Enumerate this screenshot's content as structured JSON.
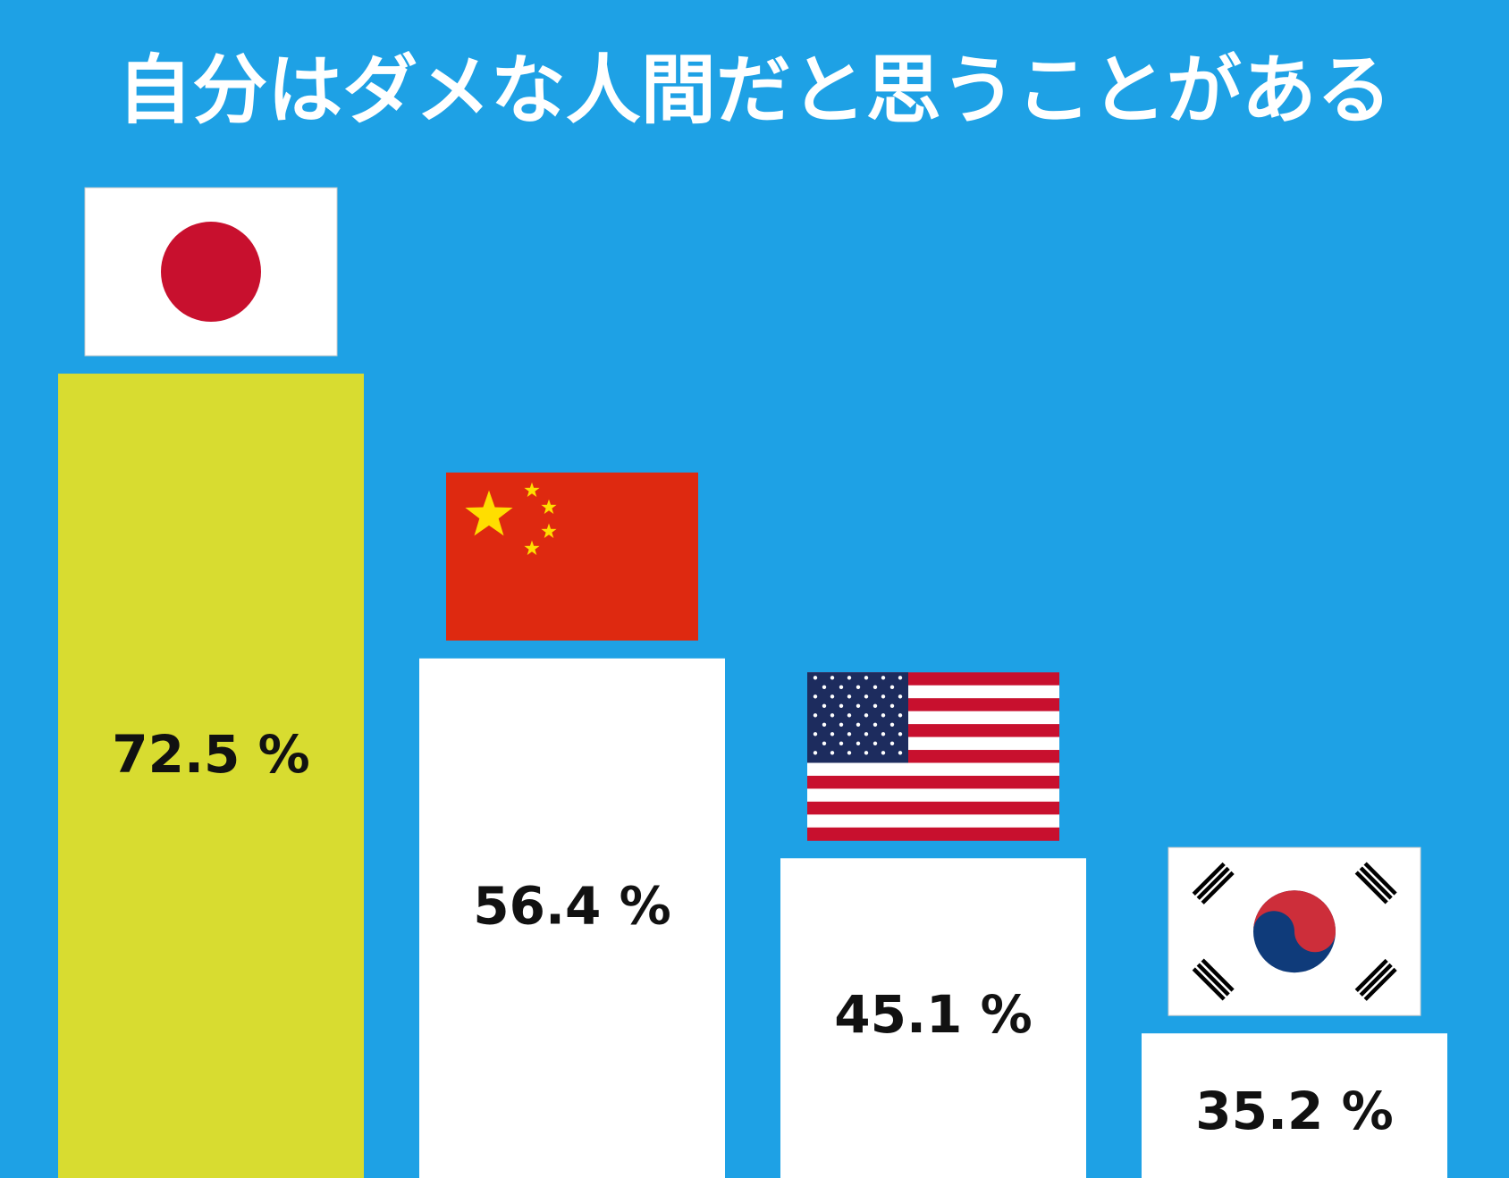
{
  "chart_data": {
    "type": "bar",
    "title": "自分はダメな人間だと思うことがある",
    "values": [
      72.5,
      56.4,
      45.1,
      35.2
    ],
    "value_labels": [
      "72.5 %",
      "56.4 %",
      "45.1 %",
      "35.2 %"
    ],
    "colors": [
      "#d8dc30",
      "#ffffff",
      "#ffffff",
      "#ffffff"
    ],
    "background": "#1ea1e5"
  }
}
